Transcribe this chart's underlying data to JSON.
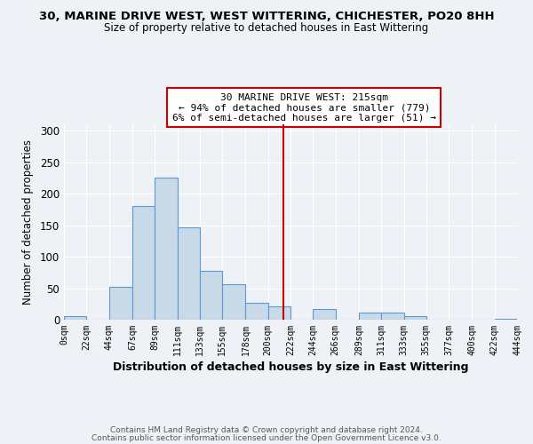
{
  "title": "30, MARINE DRIVE WEST, WEST WITTERING, CHICHESTER, PO20 8HH",
  "subtitle": "Size of property relative to detached houses in East Wittering",
  "xlabel": "Distribution of detached houses by size in East Wittering",
  "ylabel": "Number of detached properties",
  "bar_color": "#c8d9e8",
  "bar_edge_color": "#5b9bd5",
  "bin_edges": [
    0,
    22,
    44,
    67,
    89,
    111,
    133,
    155,
    178,
    200,
    222,
    244,
    266,
    289,
    311,
    333,
    355,
    377,
    400,
    422,
    444
  ],
  "bin_labels": [
    "0sqm",
    "22sqm",
    "44sqm",
    "67sqm",
    "89sqm",
    "111sqm",
    "133sqm",
    "155sqm",
    "178sqm",
    "200sqm",
    "222sqm",
    "244sqm",
    "266sqm",
    "289sqm",
    "311sqm",
    "333sqm",
    "355sqm",
    "377sqm",
    "400sqm",
    "422sqm",
    "444sqm"
  ],
  "counts": [
    5,
    0,
    52,
    180,
    225,
    147,
    77,
    57,
    27,
    21,
    0,
    17,
    0,
    11,
    11,
    6,
    0,
    0,
    0,
    2
  ],
  "vline_x": 215,
  "vline_color": "#cc0000",
  "ylim": [
    0,
    310
  ],
  "yticks": [
    0,
    50,
    100,
    150,
    200,
    250,
    300
  ],
  "annotation_title": "30 MARINE DRIVE WEST: 215sqm",
  "annotation_line1": "← 94% of detached houses are smaller (779)",
  "annotation_line2": "6% of semi-detached houses are larger (51) →",
  "annotation_box_color": "#ffffff",
  "annotation_box_edge": "#cc0000",
  "footnote1": "Contains HM Land Registry data © Crown copyright and database right 2024.",
  "footnote2": "Contains public sector information licensed under the Open Government Licence v3.0.",
  "background_color": "#eef2f7",
  "grid_color": "#ffffff"
}
